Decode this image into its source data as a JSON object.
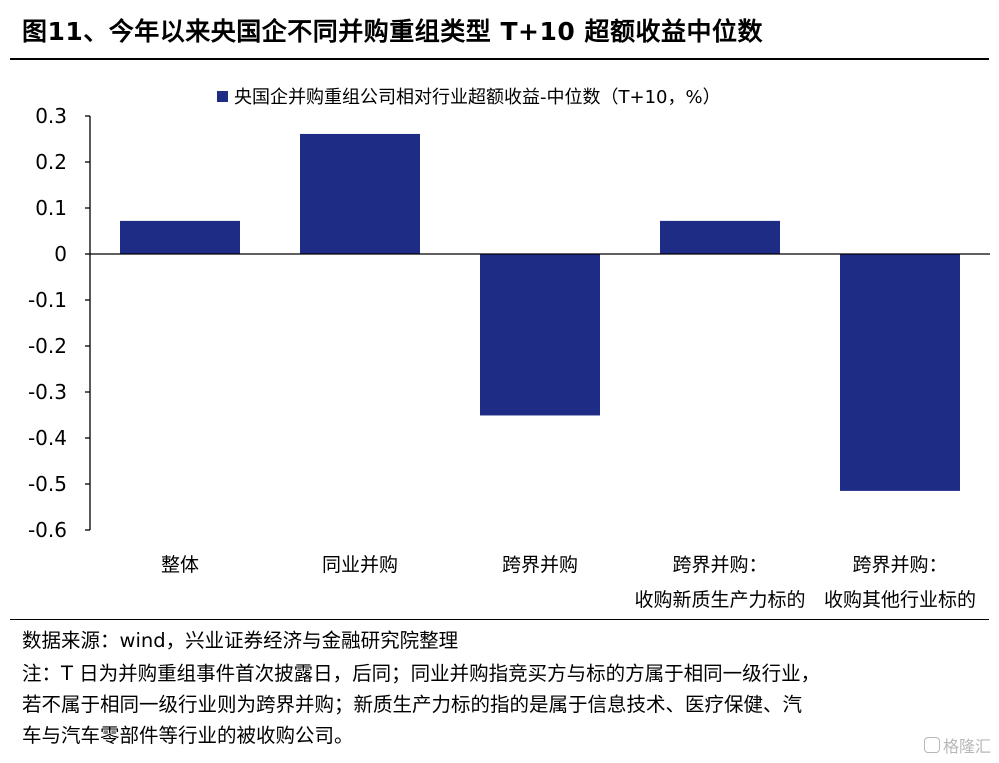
{
  "title": "图11、今年以来央国企不同并购重组类型 T+10 超额收益中位数",
  "source": "数据来源：wind，兴业证券经济与金融研究院整理",
  "note_lines": [
    "注：T 日为并购重组事件首次披露日，后同；同业并购指竞买方与标的方属于相同一级行业，",
    "若不属于相同一级行业则为跨界并购；新质生产力标的指的是属于信息技术、医疗保健、汽",
    "车与汽车零部件等行业的被收购公司。"
  ],
  "watermark": "格隆汇",
  "colors": {
    "bar": "#1f2c86",
    "axis": "#000000"
  },
  "chart_data": {
    "type": "bar",
    "title": "",
    "xlabel": "",
    "ylabel": "",
    "ylim": [
      -0.6,
      0.3
    ],
    "yticks": [
      0.3,
      0.2,
      0.1,
      0,
      -0.1,
      -0.2,
      -0.3,
      -0.4,
      -0.5,
      -0.6
    ],
    "ytick_labels": [
      "0.3",
      "0.2",
      "0.1",
      "0",
      "-0.1",
      "-0.2",
      "-0.3",
      "-0.4",
      "-0.5",
      "-0.6"
    ],
    "grid": false,
    "legend_position": "top",
    "categories": [
      [
        "整体"
      ],
      [
        "同业并购"
      ],
      [
        "跨界并购"
      ],
      [
        "跨界并购：",
        "收购新质生产力标的"
      ],
      [
        "跨界并购：",
        "收购其他行业标的"
      ]
    ],
    "series": [
      {
        "name": "央国企并购重组公司相对行业超额收益-中位数（T+10，%）",
        "values": [
          0.072,
          0.261,
          -0.351,
          0.072,
          -0.515
        ]
      }
    ]
  }
}
